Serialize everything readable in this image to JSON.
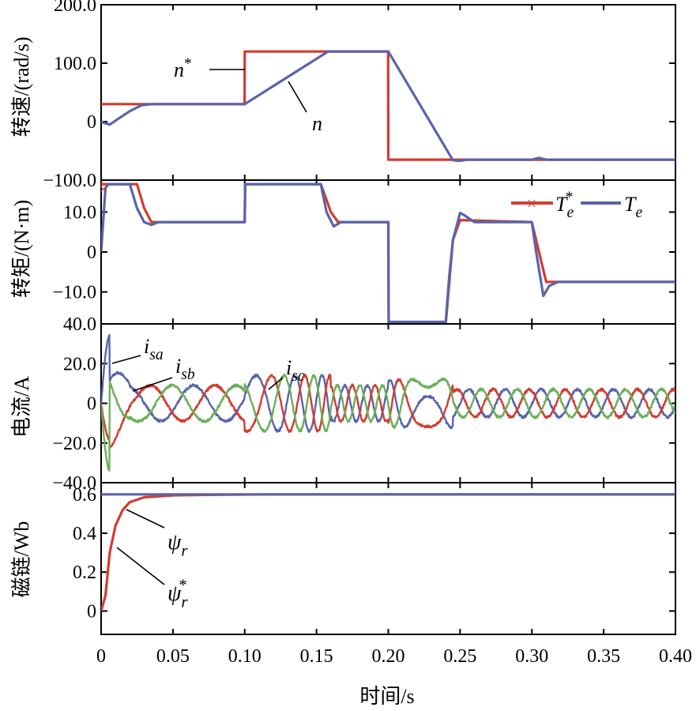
{
  "x_axis": {
    "label": "时间/s",
    "range": [
      0,
      0.4
    ],
    "ticks": [
      0,
      0.05,
      0.1,
      0.15,
      0.2,
      0.25,
      0.3,
      0.35,
      0.4
    ],
    "tick_labels": [
      "0",
      "0.05",
      "0.10",
      "0.15",
      "0.20",
      "0.25",
      "0.30",
      "0.35",
      "0.40"
    ]
  },
  "colors": {
    "red": "#d23c32",
    "blue": "#5a64aa",
    "green": "#6ab05a",
    "axis": "#000000"
  },
  "chart_data": [
    {
      "type": "line",
      "ylabel": "转速/(rad/s)",
      "ylim": [
        -100,
        200
      ],
      "yticks": [
        -100,
        0,
        100,
        200
      ],
      "ytick_labels": [
        "−100.0",
        "0",
        "100.0",
        "200.0"
      ],
      "series": [
        {
          "name": "n*",
          "color": "red",
          "x": [
            0,
            0.0999,
            0.1,
            0.1999,
            0.2,
            0.4
          ],
          "y": [
            30,
            30,
            120,
            120,
            -65,
            -65
          ]
        },
        {
          "name": "n",
          "color": "blue",
          "x": [
            0,
            0.002,
            0.006,
            0.012,
            0.02,
            0.028,
            0.035,
            0.1,
            0.158,
            0.2,
            0.245,
            0.25,
            0.255,
            0.3,
            0.305,
            0.31,
            0.4
          ],
          "y": [
            0,
            -2,
            -5,
            5,
            18,
            28,
            30,
            30,
            120,
            120,
            -66,
            -67,
            -65,
            -65,
            -62,
            -65,
            -65
          ]
        }
      ],
      "annotations": [
        {
          "text": "n*",
          "x": 0.072,
          "y": 102
        },
        {
          "text": "n",
          "x": 0.148,
          "y": 0
        }
      ]
    },
    {
      "type": "line",
      "ylabel": "转矩/(N·m)",
      "ylim": [
        -18,
        18
      ],
      "yticks": [
        -10,
        0,
        10
      ],
      "ytick_labels": [
        "−10.0",
        "0",
        "10.0"
      ],
      "legend": {
        "placement": "top-right",
        "entries": [
          {
            "label": "Te*",
            "color": "red",
            "marker": "x"
          },
          {
            "label": "Te",
            "color": "blue"
          }
        ]
      },
      "series": [
        {
          "name": "Te*",
          "color": "red",
          "x": [
            0,
            0.003,
            0.005,
            0.025,
            0.03,
            0.035,
            0.1,
            0.1003,
            0.153,
            0.16,
            0.165,
            0.2,
            0.2003,
            0.24,
            0.245,
            0.25,
            0.3,
            0.305,
            0.31,
            0.4
          ],
          "y": [
            17,
            17,
            17,
            17,
            11,
            7.5,
            7.5,
            17,
            17,
            10,
            7.5,
            7.5,
            -18,
            -18,
            3,
            8,
            7.5,
            0,
            -7.5,
            -7.5
          ]
        },
        {
          "name": "Te",
          "color": "blue",
          "x": [
            0,
            0.003,
            0.005,
            0.02,
            0.025,
            0.03,
            0.035,
            0.04,
            0.1,
            0.1003,
            0.153,
            0.157,
            0.162,
            0.167,
            0.2,
            0.2003,
            0.24,
            0.2425,
            0.245,
            0.25,
            0.253,
            0.26,
            0.3,
            0.303,
            0.308,
            0.312,
            0.318,
            0.4
          ],
          "y": [
            0,
            16,
            17,
            17,
            11,
            7.5,
            6.8,
            7.5,
            7.5,
            17,
            17,
            10,
            6.4,
            7.5,
            7.5,
            -17.5,
            -17.5,
            -6,
            3,
            9.8,
            9.2,
            7.5,
            7.5,
            0,
            -11,
            -8.5,
            -7.5,
            -7.5
          ]
        }
      ]
    },
    {
      "type": "line",
      "ylabel": "电流/A",
      "ylim": [
        -40,
        40
      ],
      "yticks": [
        -40,
        -20,
        0,
        20,
        40
      ],
      "ytick_labels": [
        "−40.0",
        "−20.0",
        "0",
        "20.0",
        "40.0"
      ],
      "series": [
        {
          "name": "isa",
          "color": "blue"
        },
        {
          "name": "isb",
          "color": "red"
        },
        {
          "name": "isc",
          "color": "green"
        }
      ],
      "annotations": [
        {
          "text": "isa",
          "x": 0.015,
          "y": 31
        },
        {
          "text": "isb",
          "x": 0.026,
          "y": 20
        },
        {
          "text": "isc",
          "x": 0.127,
          "y": 19
        }
      ]
    },
    {
      "type": "line",
      "ylabel": "磁链/Wb",
      "ylim": [
        -0.12,
        0.66
      ],
      "yticks": [
        0,
        0.2,
        0.4,
        0.6
      ],
      "ytick_labels": [
        "0",
        "0.2",
        "0.4",
        "0.6"
      ],
      "series": [
        {
          "name": "ψr*",
          "color": "red",
          "x": [
            0,
            0.003,
            0.006,
            0.01,
            0.015,
            0.02,
            0.03,
            0.05,
            0.08,
            0.12,
            0.4
          ],
          "y": [
            0,
            0.08,
            0.3,
            0.44,
            0.52,
            0.56,
            0.585,
            0.595,
            0.598,
            0.6,
            0.6
          ]
        },
        {
          "name": "ψr",
          "color": "blue",
          "x": [
            0,
            0.4
          ],
          "y": [
            0.6,
            0.6
          ]
        }
      ],
      "annotations": [
        {
          "text": "ψr",
          "x": 0.05,
          "y": 0.43
        },
        {
          "text": "ψr*",
          "x": 0.05,
          "y": 0.16
        }
      ]
    }
  ]
}
